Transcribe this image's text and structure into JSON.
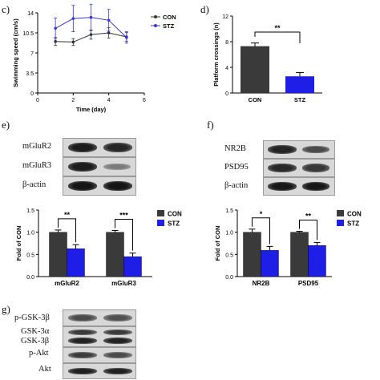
{
  "panels": {
    "c": {
      "letter": "c)",
      "chart_data": {
        "type": "line",
        "xlabel": "Time (day)",
        "ylabel": "Swimming speed (cm/s)",
        "xlim": [
          0,
          6
        ],
        "ylim": [
          0,
          14
        ],
        "xticks": [
          "0",
          "2",
          "4",
          "6"
        ],
        "yticks": [
          "0",
          "3.5",
          "7",
          "10.5",
          "14"
        ],
        "x": [
          1,
          2,
          3,
          4,
          5
        ],
        "series": [
          {
            "name": "CON",
            "color": "#333333",
            "values": [
              9.0,
              8.9,
              10.2,
              10.5,
              9.8
            ],
            "err": [
              0.7,
              0.6,
              0.8,
              0.9,
              0.8
            ]
          },
          {
            "name": "STZ",
            "color": "#3636d8",
            "values": [
              11.3,
              13.0,
              13.2,
              12.7,
              9.7
            ],
            "err": [
              1.8,
              2.3,
              2.3,
              1.9,
              1.0
            ]
          }
        ],
        "legend": "top-right"
      }
    },
    "d": {
      "letter": "d)",
      "chart_data": {
        "type": "bar",
        "ylabel": "Platform crossings (n)",
        "categories": [
          "CON",
          "STZ"
        ],
        "values": [
          7.3,
          2.6
        ],
        "err": [
          0.5,
          0.6
        ],
        "colors": [
          "#3a3a3a",
          "#1e1ee6"
        ],
        "ylim": [
          0,
          12
        ],
        "yticks": [
          "0",
          "4",
          "8",
          "12"
        ],
        "significance": "**"
      }
    },
    "e": {
      "letter": "e)",
      "blot_labels": [
        "mGluR2",
        "mGluR3",
        "β-actin"
      ],
      "chart_data": {
        "type": "bar",
        "ylabel": "Fold of CON",
        "categories": [
          "mGluR2",
          "mGluR3"
        ],
        "series": [
          {
            "name": "CON",
            "color": "#3a3a3a",
            "values": [
              1.0,
              1.0
            ],
            "err": [
              0.05,
              0.04
            ]
          },
          {
            "name": "STZ",
            "color": "#1e1ee6",
            "values": [
              0.63,
              0.45
            ],
            "err": [
              0.09,
              0.08
            ]
          }
        ],
        "ylim": [
          0,
          1.5
        ],
        "yticks": [
          "0.0",
          "0.5",
          "1.0",
          "1.5"
        ],
        "significance": [
          "**",
          "***"
        ],
        "legend": "right"
      }
    },
    "f": {
      "letter": "f)",
      "blot_labels": [
        "NR2B",
        "PSD95",
        "β-actin"
      ],
      "chart_data": {
        "type": "bar",
        "ylabel": "Fold of CON",
        "categories": [
          "NR2B",
          "PSD95"
        ],
        "series": [
          {
            "name": "CON",
            "color": "#3a3a3a",
            "values": [
              1.0,
              1.0
            ],
            "err": [
              0.07,
              0.02
            ]
          },
          {
            "name": "STZ",
            "color": "#1e1ee6",
            "values": [
              0.59,
              0.7
            ],
            "err": [
              0.09,
              0.07
            ]
          }
        ],
        "ylim": [
          0,
          1.5
        ],
        "yticks": [
          "0.0",
          "0.5",
          "1.0",
          "1.5"
        ],
        "significance": [
          "*",
          "**"
        ],
        "legend": "right"
      }
    },
    "g": {
      "letter": "g)",
      "blot_labels": [
        "p-GSK-3β",
        "GSK-3α",
        "GSK-3β",
        "p-Akt",
        "Akt"
      ]
    }
  }
}
